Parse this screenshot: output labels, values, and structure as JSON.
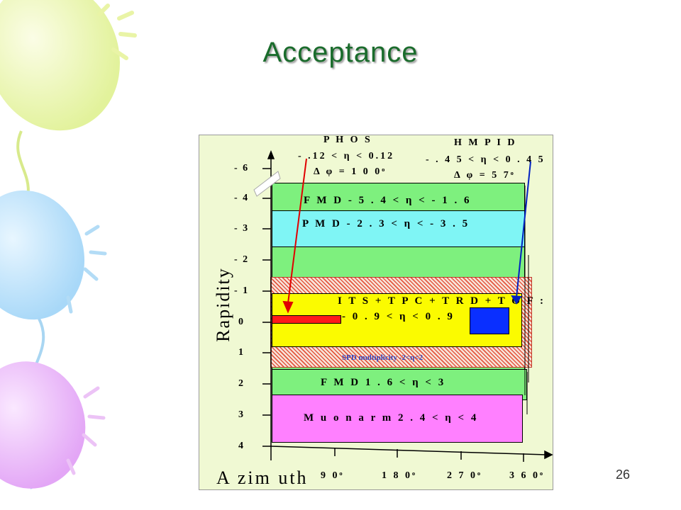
{
  "slide": {
    "title": "Acceptance",
    "number": "26"
  },
  "axes": {
    "ylabel": "Rapidity",
    "xlabel": "A zim uth",
    "yticks": [
      "- 6",
      "- 4",
      "- 3",
      "- 2",
      "- 1",
      "0",
      "1",
      "2",
      "3",
      "4"
    ],
    "xticks": [
      "9 0ᵒ",
      "1 8 0ᵒ",
      "2 7 0ᵒ",
      "3 6 0ᵒ"
    ]
  },
  "headers": {
    "phos": {
      "name": "P H O S",
      "eta": "- .12  <  η  <  0.12",
      "phi": "Δ φ  =  1 0 0ᵒ"
    },
    "hmpid": {
      "name": "H M P I D",
      "eta": "- . 4 5  <  η  <  0 . 4 5",
      "phi": "Δ φ  =  5 7ᵒ"
    }
  },
  "bands": {
    "fmd_neg": "F M D   - 5 . 4  <  η  <  - 1 . 6",
    "pmd": "P M D   - 2 . 3  <  η  <  - 3 . 5",
    "its_line1": "I T S + T P C + T R D + T O F :",
    "its_line2": "- 0 . 9  <  η  <  0 . 9",
    "spd": "SPD multiplicity  -2<η<2",
    "fmd_pos": "F M D   1 . 6  <  η  <  3",
    "muon": "M u o n  a r m   2 . 4  <  η  <  4"
  },
  "colors": {
    "title": "#1a6c2c",
    "fmd": "#7ef07e",
    "pmd": "#7ff5f5",
    "its": "#fbfb00",
    "muon": "#ff80ff",
    "hatch": "#e4573f",
    "panel": "#f0f9d3"
  }
}
